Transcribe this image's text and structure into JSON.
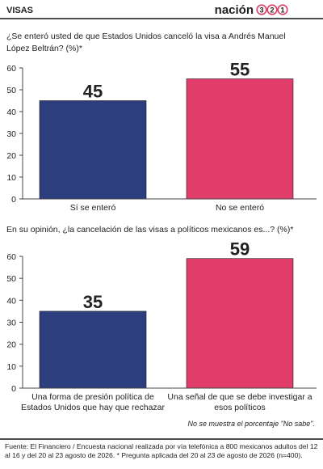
{
  "header": {
    "section": "VISAS",
    "logo": "nación",
    "logo_digits": [
      "3",
      "2",
      "1"
    ]
  },
  "chart_data": [
    {
      "type": "bar",
      "title": "¿Se enteró usted de que Estados Unidos canceló la visa a Andrés Manuel López Beltrán?  (%)*",
      "categories": [
        "Sí se enteró",
        "No se enteró"
      ],
      "values": [
        45,
        55
      ],
      "colors": [
        "#2d3e7e",
        "#e13d6b"
      ],
      "ylim": [
        0,
        60
      ],
      "yticks": [
        0,
        10,
        20,
        30,
        40,
        50,
        60
      ],
      "grid": false
    },
    {
      "type": "bar",
      "title": "En su opinión, ¿la cancelación de las visas a políticos mexicanos es...?  (%)*",
      "categories": [
        "Una forma de presión política de Estados Unidos que hay que rechazar",
        "Una señal de que se debe investigar a esos políticos"
      ],
      "values": [
        35,
        59
      ],
      "colors": [
        "#2d3e7e",
        "#e13d6b"
      ],
      "ylim": [
        0,
        60
      ],
      "yticks": [
        0,
        10,
        20,
        30,
        40,
        50,
        60
      ],
      "grid": false
    }
  ],
  "note": "No se muestra el porcentaje \"No sabe\".",
  "source": "Fuente: El Financiero / Encuesta nacional realizada por vía telefónica a 800 mexicanos adultos del 12 al 16  y del 20 al 23 agosto de 2026. * Pregunta aplicada del 20 al 23 de agosto de 2026 (n=400)."
}
